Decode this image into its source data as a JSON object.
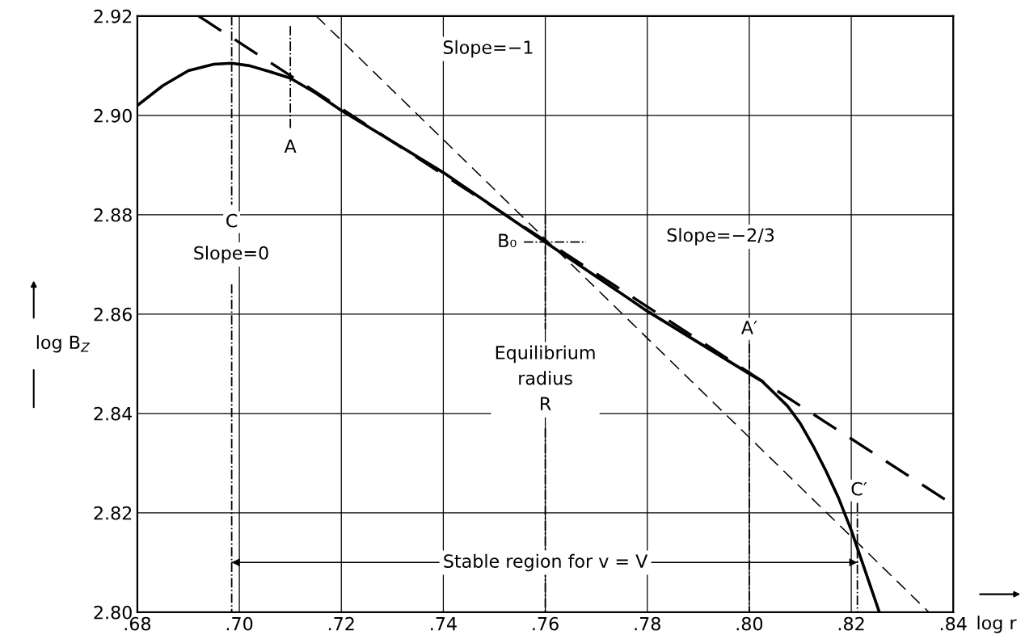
{
  "chart_data": {
    "type": "line",
    "xlabel": "log r",
    "ylabel": "log B$_{Z}$",
    "xlim": [
      0.68,
      0.84
    ],
    "ylim": [
      2.8,
      2.92
    ],
    "xticks": [
      {
        "value": 0.68,
        "label": ".68"
      },
      {
        "value": 0.7,
        "label": ".70"
      },
      {
        "value": 0.72,
        "label": ".72"
      },
      {
        "value": 0.74,
        "label": ".74"
      },
      {
        "value": 0.76,
        "label": ".76"
      },
      {
        "value": 0.78,
        "label": ".78"
      },
      {
        "value": 0.8,
        "label": ".80"
      },
      {
        "value": 0.82,
        "label": ".82"
      },
      {
        "value": 0.84,
        "label": ".84"
      }
    ],
    "yticks": [
      {
        "value": 2.8,
        "label": "2.80"
      },
      {
        "value": 2.82,
        "label": "2.82"
      },
      {
        "value": 2.84,
        "label": "2.84"
      },
      {
        "value": 2.86,
        "label": "2.86"
      },
      {
        "value": 2.88,
        "label": "2.88"
      },
      {
        "value": 2.9,
        "label": "2.90"
      },
      {
        "value": 2.92,
        "label": "2.92"
      }
    ],
    "grid": true,
    "marker": "none",
    "series": [
      {
        "color": "#000000",
        "line_style": "solid",
        "x": [
          0.68,
          0.685,
          0.69,
          0.695,
          0.6985,
          0.702,
          0.706,
          0.71,
          0.715,
          0.72,
          0.74,
          0.76,
          0.78,
          0.8,
          0.8025,
          0.805,
          0.8075,
          0.81,
          0.8125,
          0.815,
          0.8175,
          0.82,
          0.8225,
          0.8255
        ],
        "values": [
          2.902,
          2.906,
          2.909,
          2.9103,
          2.9105,
          2.91,
          2.9088,
          2.9075,
          2.9045,
          2.901,
          2.8885,
          2.8745,
          2.8606,
          2.848,
          2.8465,
          2.844,
          2.8415,
          2.838,
          2.8335,
          2.8285,
          2.823,
          2.8165,
          2.809,
          2.8
        ]
      },
      {
        "color": "#000000",
        "line_style": "dashed",
        "x": [
          0.692,
          0.84
        ],
        "values": [
          2.92,
          2.8216
        ]
      },
      {
        "color": "#000000",
        "line_style": "dashed",
        "x": [
          0.7151,
          0.8352
        ],
        "values": [
          2.92,
          2.8
        ]
      },
      {
        "color": "#000000",
        "line_style": "dashdot",
        "x": [
          0.6985,
          0.6985
        ],
        "values": [
          2.92,
          2.882
        ]
      },
      {
        "color": "#000000",
        "line_style": "dashdot",
        "x": [
          0.6985,
          0.6985
        ],
        "values": [
          2.866,
          2.8
        ]
      },
      {
        "color": "#000000",
        "line_style": "dashdot",
        "x": [
          0.71,
          0.71
        ],
        "values": [
          2.918,
          2.897
        ]
      },
      {
        "color": "#000000",
        "line_style": "dashdot",
        "x": [
          0.76,
          0.76
        ],
        "values": [
          2.88,
          2.857
        ]
      },
      {
        "color": "#000000",
        "line_style": "dashdot",
        "x": [
          0.76,
          0.76
        ],
        "values": [
          2.837,
          2.8
        ]
      },
      {
        "color": "#000000",
        "line_style": "dashdot",
        "x": [
          0.7558,
          0.768
        ],
        "values": [
          2.8745,
          2.8745
        ]
      },
      {
        "color": "#000000",
        "line_style": "dashdot",
        "x": [
          0.8,
          0.8
        ],
        "values": [
          2.854,
          2.8
        ]
      },
      {
        "color": "#000000",
        "line_style": "dashdot",
        "x": [
          0.8212,
          0.8212
        ],
        "values": [
          2.822,
          2.8
        ]
      },
      {
        "color": "#000000",
        "line_style": "solid",
        "x": [
          0.6985,
          0.8212
        ],
        "values": [
          2.81,
          2.81
        ]
      }
    ],
    "annotations": [
      {
        "text": "C",
        "x": 0.6985,
        "y": 2.8785
      },
      {
        "text": "A",
        "x": 0.71,
        "y": 2.8935
      },
      {
        "text": "B₀",
        "x": 0.7525,
        "y": 2.8745
      },
      {
        "text": "A′",
        "x": 0.8,
        "y": 2.857
      },
      {
        "text": "C′",
        "x": 0.8215,
        "y": 2.8245
      },
      "Slope=0",
      "Slope=−1",
      "Slope=−2/3",
      "Equilibrium\nradius\nR",
      "Stable region for v = V"
    ]
  }
}
